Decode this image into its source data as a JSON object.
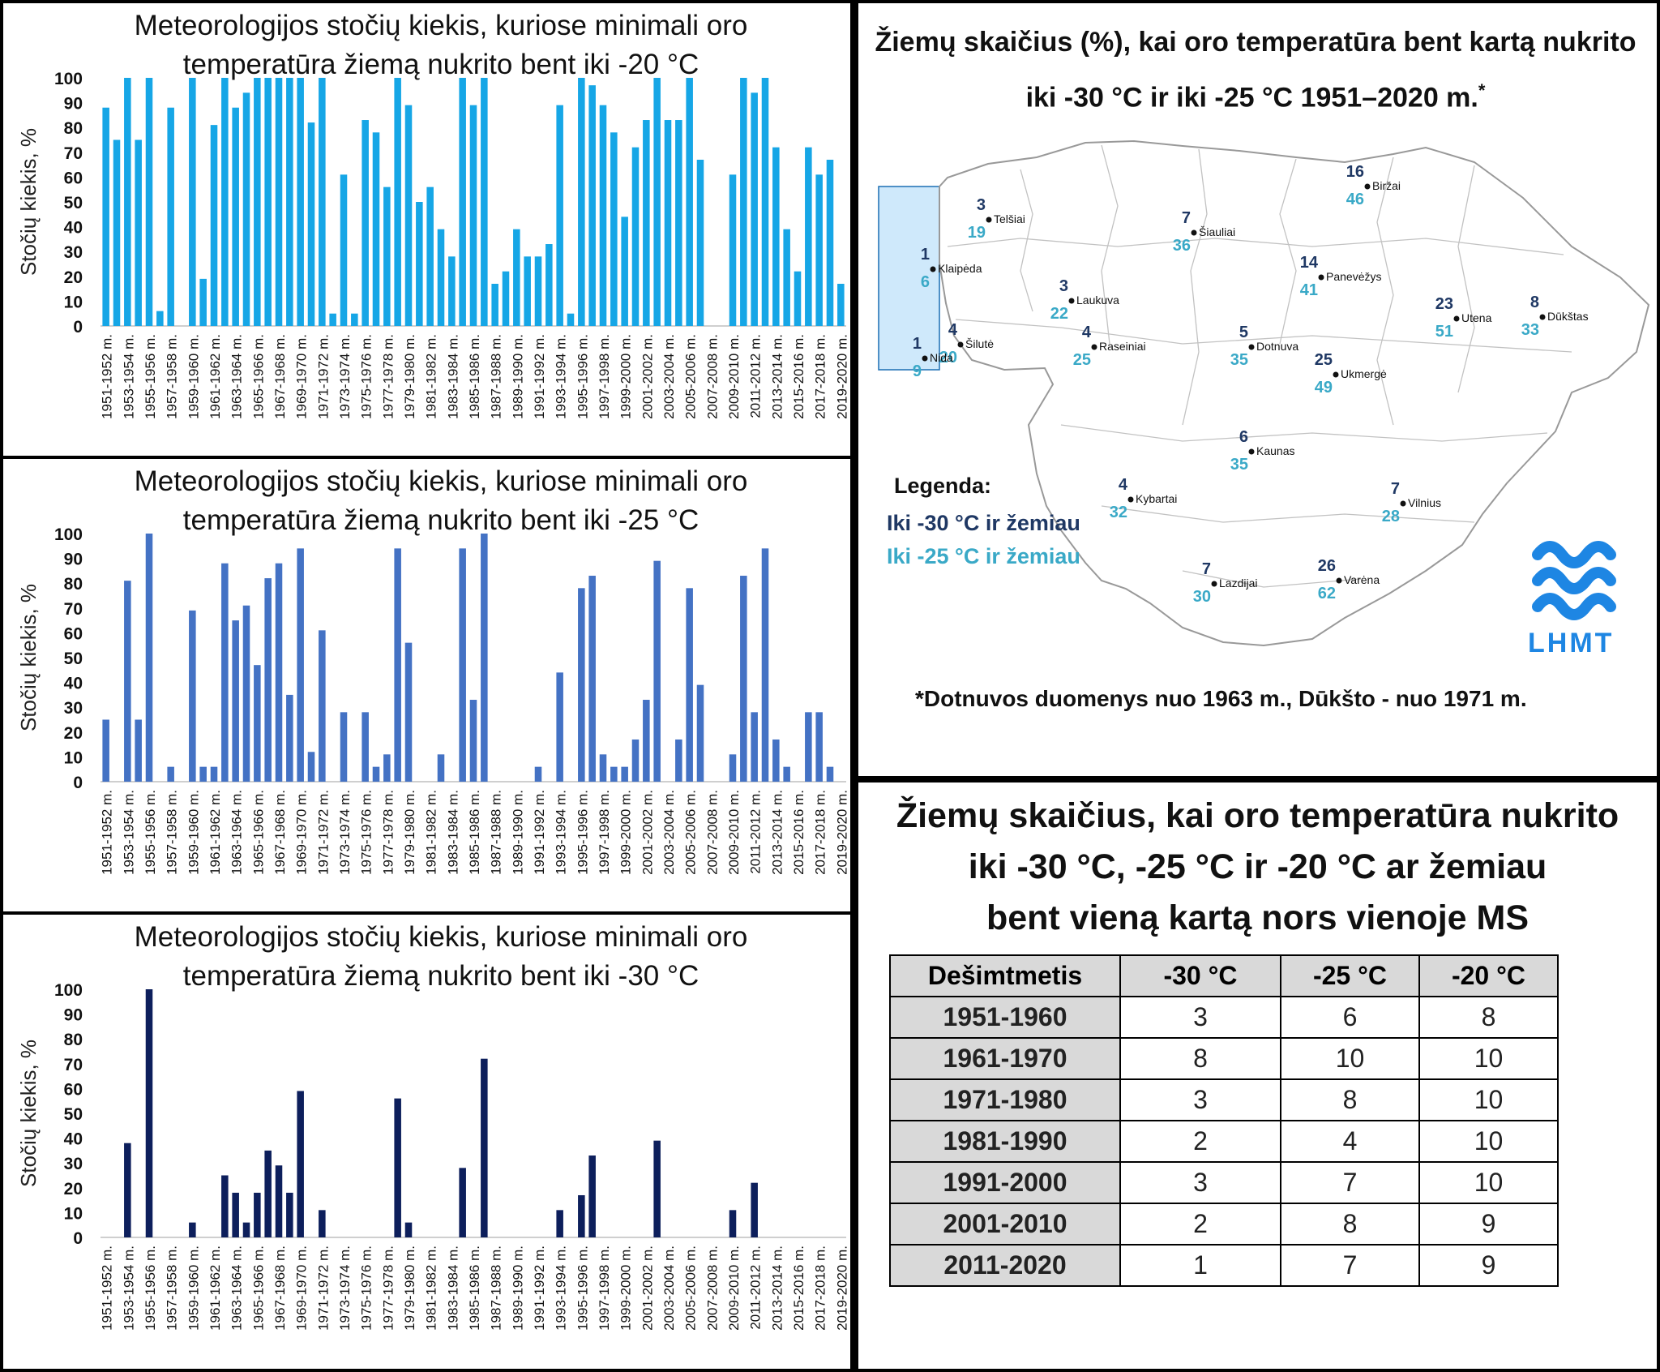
{
  "chart_data": [
    {
      "type": "bar",
      "title": "Meteorologijos stočių kiekis, kuriose minimali oro temperatūra žiemą nukrito bent iki -20 °C",
      "ylabel": "Stočių kiekis, %",
      "ylim": [
        0,
        100
      ],
      "yticks": [
        "0",
        "10",
        "20",
        "30",
        "40",
        "50",
        "60",
        "70",
        "80",
        "90",
        "100"
      ],
      "color": "#16a6e6",
      "categories": [
        "1951-1952 m.",
        "1952-1953 m.",
        "1953-1954 m.",
        "1954-1955 m.",
        "1955-1956 m.",
        "1956-1957 m.",
        "1957-1958 m.",
        "1958-1959 m.",
        "1959-1960 m.",
        "1960-1961 m.",
        "1961-1962 m.",
        "1962-1963 m.",
        "1963-1964 m.",
        "1964-1965 m.",
        "1965-1966 m.",
        "1966-1967 m.",
        "1967-1968 m.",
        "1968-1969 m.",
        "1969-1970 m.",
        "1970-1971 m.",
        "1971-1972 m.",
        "1972-1973 m.",
        "1973-1974 m.",
        "1974-1975 m.",
        "1975-1976 m.",
        "1976-1977 m.",
        "1977-1978 m.",
        "1978-1979 m.",
        "1979-1980 m.",
        "1980-1981 m.",
        "1981-1982 m.",
        "1982-1983 m.",
        "1983-1984 m.",
        "1984-1985 m.",
        "1985-1986 m.",
        "1986-1987 m.",
        "1987-1988 m.",
        "1988-1989 m.",
        "1989-1990 m.",
        "1990-1991 m.",
        "1991-1992 m.",
        "1992-1993 m.",
        "1993-1994 m.",
        "1994-1995 m.",
        "1995-1996 m.",
        "1996-1997 m.",
        "1997-1998 m.",
        "1998-1999 m.",
        "1999-2000 m.",
        "2000-2001 m.",
        "2001-2002 m.",
        "2002-2003 m.",
        "2003-2004 m.",
        "2004-2005 m.",
        "2005-2006 m.",
        "2006-2007 m.",
        "2007-2008 m.",
        "2008-2009 m.",
        "2009-2010 m.",
        "2010-2011 m.",
        "2011-2012 m.",
        "2012-2013 m.",
        "2013-2014 m.",
        "2014-2015 m.",
        "2015-2016 m.",
        "2016-2017 m.",
        "2017-2018 m.",
        "2018-2019 m.",
        "2019-2020 m."
      ],
      "labeled_every": 2,
      "values": [
        88,
        75,
        100,
        75,
        100,
        6,
        88,
        0,
        100,
        19,
        81,
        100,
        88,
        94,
        100,
        100,
        100,
        100,
        100,
        82,
        100,
        5,
        61,
        5,
        83,
        78,
        56,
        100,
        89,
        50,
        56,
        39,
        28,
        100,
        89,
        100,
        17,
        22,
        39,
        28,
        28,
        33,
        89,
        5,
        100,
        97,
        89,
        78,
        44,
        72,
        83,
        100,
        83,
        83,
        100,
        67,
        0,
        0,
        61,
        100,
        94,
        100,
        72,
        39,
        22,
        72,
        61,
        67,
        17
      ]
    },
    {
      "type": "bar",
      "title": "Meteorologijos stočių kiekis, kuriose minimali oro temperatūra žiemą nukrito bent iki -25 °C",
      "ylabel": "Stočių kiekis, %",
      "ylim": [
        0,
        100
      ],
      "yticks": [
        "0",
        "10",
        "20",
        "30",
        "40",
        "50",
        "60",
        "70",
        "80",
        "90",
        "100"
      ],
      "color": "#4472c4",
      "categories": [
        "1951-1952 m.",
        "1952-1953 m.",
        "1953-1954 m.",
        "1954-1955 m.",
        "1955-1956 m.",
        "1956-1957 m.",
        "1957-1958 m.",
        "1958-1959 m.",
        "1959-1960 m.",
        "1960-1961 m.",
        "1961-1962 m.",
        "1962-1963 m.",
        "1963-1964 m.",
        "1964-1965 m.",
        "1965-1966 m.",
        "1966-1967 m.",
        "1967-1968 m.",
        "1968-1969 m.",
        "1969-1970 m.",
        "1970-1971 m.",
        "1971-1972 m.",
        "1972-1973 m.",
        "1973-1974 m.",
        "1974-1975 m.",
        "1975-1976 m.",
        "1976-1977 m.",
        "1977-1978 m.",
        "1978-1979 m.",
        "1979-1980 m.",
        "1980-1981 m.",
        "1981-1982 m.",
        "1982-1983 m.",
        "1983-1984 m.",
        "1984-1985 m.",
        "1985-1986 m.",
        "1986-1987 m.",
        "1987-1988 m.",
        "1988-1989 m.",
        "1989-1990 m.",
        "1990-1991 m.",
        "1991-1992 m.",
        "1992-1993 m.",
        "1993-1994 m.",
        "1994-1995 m.",
        "1995-1996 m.",
        "1996-1997 m.",
        "1997-1998 m.",
        "1998-1999 m.",
        "1999-2000 m.",
        "2000-2001 m.",
        "2001-2002 m.",
        "2002-2003 m.",
        "2003-2004 m.",
        "2004-2005 m.",
        "2005-2006 m.",
        "2006-2007 m.",
        "2007-2008 m.",
        "2008-2009 m.",
        "2009-2010 m.",
        "2010-2011 m.",
        "2011-2012 m.",
        "2012-2013 m.",
        "2013-2014 m.",
        "2014-2015 m.",
        "2015-2016 m.",
        "2016-2017 m.",
        "2017-2018 m.",
        "2018-2019 m.",
        "2019-2020 m."
      ],
      "labeled_every": 2,
      "values": [
        25,
        0,
        81,
        25,
        100,
        0,
        6,
        0,
        69,
        6,
        6,
        88,
        65,
        71,
        47,
        82,
        88,
        35,
        94,
        12,
        61,
        0,
        28,
        0,
        28,
        6,
        11,
        94,
        56,
        0,
        0,
        11,
        0,
        94,
        33,
        100,
        0,
        0,
        0,
        0,
        6,
        0,
        44,
        0,
        78,
        83,
        11,
        6,
        6,
        17,
        33,
        89,
        0,
        17,
        78,
        39,
        0,
        0,
        11,
        83,
        28,
        94,
        17,
        6,
        0,
        28,
        28,
        6,
        0
      ]
    },
    {
      "type": "bar",
      "title": "Meteorologijos stočių kiekis, kuriose minimali oro temperatūra žiemą nukrito bent iki -30 °C",
      "ylabel": "Stočių kiekis, %",
      "ylim": [
        0,
        100
      ],
      "yticks": [
        "0",
        "10",
        "20",
        "30",
        "40",
        "50",
        "60",
        "70",
        "80",
        "90",
        "100"
      ],
      "color": "#0d1f5c",
      "categories": [
        "1951-1952 m.",
        "1952-1953 m.",
        "1953-1954 m.",
        "1954-1955 m.",
        "1955-1956 m.",
        "1956-1957 m.",
        "1957-1958 m.",
        "1958-1959 m.",
        "1959-1960 m.",
        "1960-1961 m.",
        "1961-1962 m.",
        "1962-1963 m.",
        "1963-1964 m.",
        "1964-1965 m.",
        "1965-1966 m.",
        "1966-1967 m.",
        "1967-1968 m.",
        "1968-1969 m.",
        "1969-1970 m.",
        "1970-1971 m.",
        "1971-1972 m.",
        "1972-1973 m.",
        "1973-1974 m.",
        "1974-1975 m.",
        "1975-1976 m.",
        "1976-1977 m.",
        "1977-1978 m.",
        "1978-1979 m.",
        "1979-1980 m.",
        "1980-1981 m.",
        "1981-1982 m.",
        "1982-1983 m.",
        "1983-1984 m.",
        "1984-1985 m.",
        "1985-1986 m.",
        "1986-1987 m.",
        "1987-1988 m.",
        "1988-1989 m.",
        "1989-1990 m.",
        "1990-1991 m.",
        "1991-1992 m.",
        "1992-1993 m.",
        "1993-1994 m.",
        "1994-1995 m.",
        "1995-1996 m.",
        "1996-1997 m.",
        "1997-1998 m.",
        "1998-1999 m.",
        "1999-2000 m.",
        "2000-2001 m.",
        "2001-2002 m.",
        "2002-2003 m.",
        "2003-2004 m.",
        "2004-2005 m.",
        "2005-2006 m.",
        "2006-2007 m.",
        "2007-2008 m.",
        "2008-2009 m.",
        "2009-2010 m.",
        "2010-2011 m.",
        "2011-2012 m.",
        "2012-2013 m.",
        "2013-2014 m.",
        "2014-2015 m.",
        "2015-2016 m.",
        "2016-2017 m.",
        "2017-2018 m.",
        "2018-2019 m.",
        "2019-2020 m."
      ],
      "labeled_every": 2,
      "values": [
        0,
        0,
        38,
        0,
        100,
        0,
        0,
        0,
        6,
        0,
        0,
        25,
        18,
        6,
        18,
        35,
        29,
        18,
        59,
        0,
        11,
        0,
        0,
        0,
        0,
        0,
        0,
        56,
        6,
        0,
        0,
        0,
        0,
        28,
        0,
        72,
        0,
        0,
        0,
        0,
        0,
        0,
        11,
        0,
        17,
        33,
        0,
        0,
        0,
        0,
        0,
        39,
        0,
        0,
        0,
        0,
        0,
        0,
        11,
        0,
        22,
        0,
        0,
        0,
        0,
        0,
        0,
        0,
        0
      ]
    }
  ],
  "map": {
    "title": "Žiemų skaičius (%), kai oro temperatūra bent kartą nukrito iki -30 °C ir iki -25 °C 1951–2020 m.",
    "title_mark": "*",
    "legend_title": "Legenda:",
    "legend_30": "Iki -30 °C ir žemiau",
    "legend_25": "Iki -25 °C ir žemiau",
    "color_30": "#1f3864",
    "color_25": "#3aa9c7",
    "footnote": "*Dotnuvos duomenys nuo 1963 m., Dūkšto - nuo 1971 m.",
    "logo_text": "LHMT",
    "logo_color": "#1e86e3",
    "stations": [
      {
        "name": "Biržai",
        "v30": "16",
        "v25": "46"
      },
      {
        "name": "Telšiai",
        "v30": "3",
        "v25": "19"
      },
      {
        "name": "Šiauliai",
        "v30": "7",
        "v25": "36"
      },
      {
        "name": "Klaipėda",
        "v30": "1",
        "v25": "6"
      },
      {
        "name": "Panevėžys",
        "v30": "14",
        "v25": "41"
      },
      {
        "name": "Laukuva",
        "v30": "3",
        "v25": "22"
      },
      {
        "name": "Utena",
        "v30": "23",
        "v25": "51"
      },
      {
        "name": "Dūkštas",
        "v30": "8",
        "v25": "33"
      },
      {
        "name": "Šilutė",
        "v30": "4",
        "v25": "20"
      },
      {
        "name": "Nida",
        "v30": "1",
        "v25": "9"
      },
      {
        "name": "Raseiniai",
        "v30": "4",
        "v25": "25"
      },
      {
        "name": "Dotnuva",
        "v30": "5",
        "v25": "35"
      },
      {
        "name": "Ukmergė",
        "v30": "25",
        "v25": "49"
      },
      {
        "name": "Kaunas",
        "v30": "6",
        "v25": "35"
      },
      {
        "name": "Kybartai",
        "v30": "4",
        "v25": "32"
      },
      {
        "name": "Vilnius",
        "v30": "7",
        "v25": "28"
      },
      {
        "name": "Lazdijai",
        "v30": "7",
        "v25": "30"
      },
      {
        "name": "Varėna",
        "v30": "26",
        "v25": "62"
      }
    ]
  },
  "table": {
    "title_lines": [
      "Žiemų skaičius, kai oro temperatūra nukrito",
      "iki -30 °C, -25 °C ir -20 °C ar žemiau",
      "bent vieną kartą nors vienoje MS"
    ],
    "headers": [
      "Dešimtmetis",
      "-30 °C",
      "-25 °C",
      "-20 °C"
    ],
    "rows": [
      [
        "1951-1960",
        "3",
        "6",
        "8"
      ],
      [
        "1961-1970",
        "8",
        "10",
        "10"
      ],
      [
        "1971-1980",
        "3",
        "8",
        "10"
      ],
      [
        "1981-1990",
        "2",
        "4",
        "10"
      ],
      [
        "1991-2000",
        "3",
        "7",
        "10"
      ],
      [
        "2001-2010",
        "2",
        "8",
        "9"
      ],
      [
        "2011-2020",
        "1",
        "7",
        "9"
      ]
    ]
  }
}
